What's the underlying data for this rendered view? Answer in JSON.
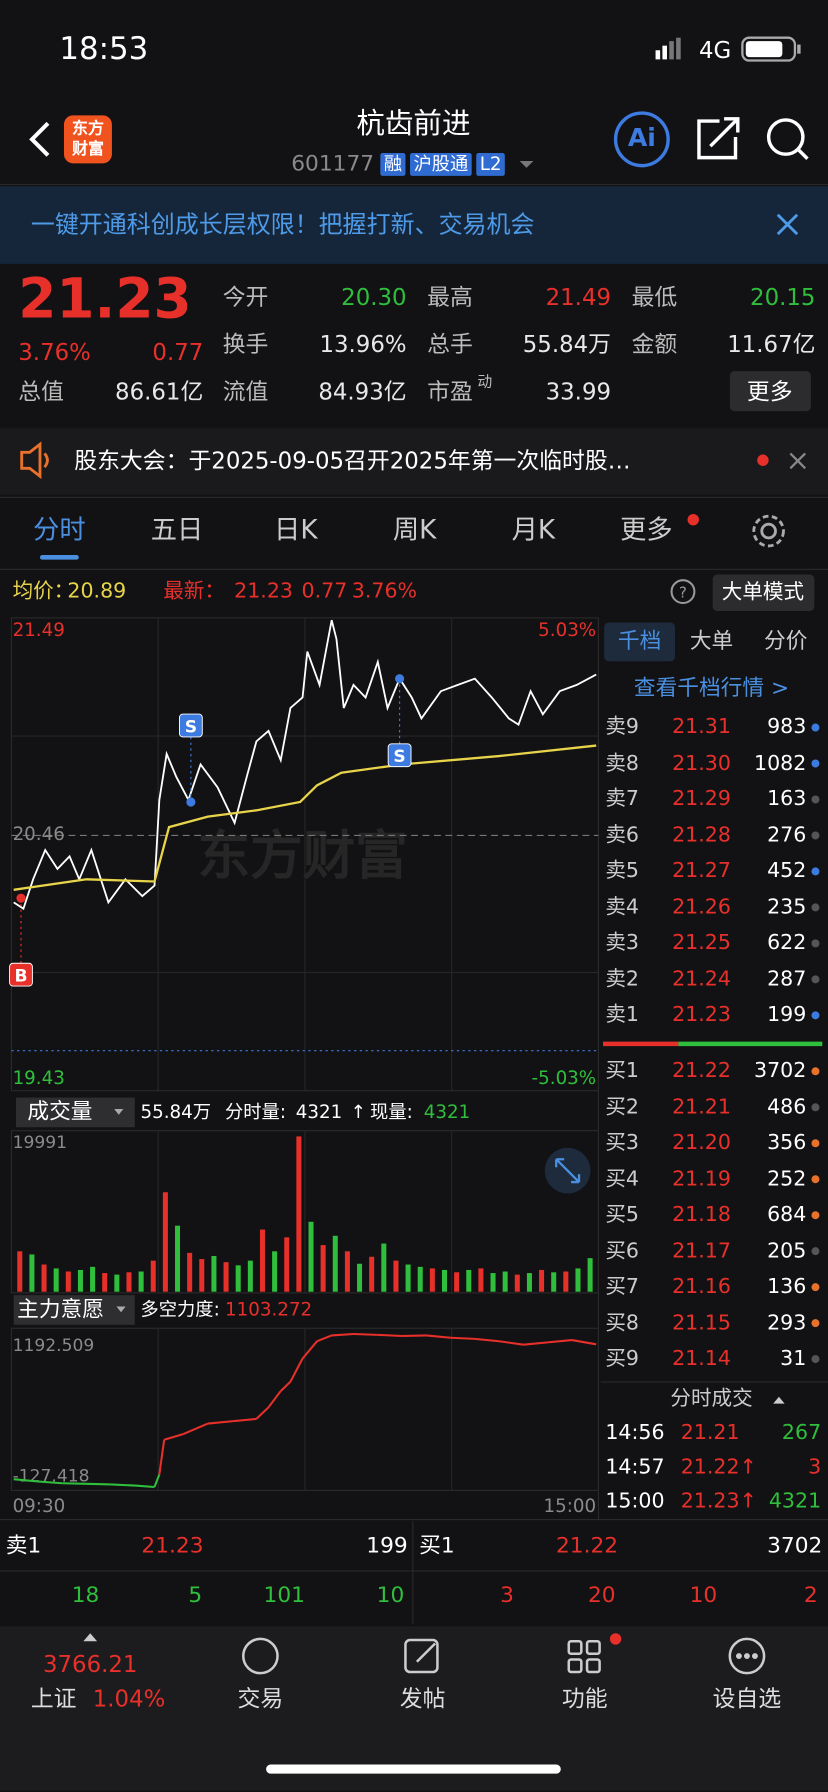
{
  "status_bar": {
    "time": "18:53",
    "network": "4G"
  },
  "header": {
    "logo": [
      "东方",
      "财富"
    ],
    "title": "杭齿前进",
    "code": "601177",
    "badges": [
      "融",
      "沪股通",
      "L2"
    ],
    "ai": "Ai"
  },
  "banner": {
    "text": "一键开通科创成长层权限！把握打新、交易机会"
  },
  "quote": {
    "price": "21.23",
    "change_pct": "3.76%",
    "change": "0.77",
    "fields": [
      {
        "label": "今开",
        "value": "20.30",
        "color": "#2fbf3c"
      },
      {
        "label": "最高",
        "value": "21.49",
        "color": "#e8302b"
      },
      {
        "label": "最低",
        "value": "20.15",
        "color": "#2fbf3c"
      },
      {
        "label": "换手",
        "value": "13.96%"
      },
      {
        "label": "总手",
        "value": "55.84万"
      },
      {
        "label": "金额",
        "value": "11.67亿"
      },
      {
        "label": "总值",
        "value": "86.61亿"
      },
      {
        "label": "流值",
        "value": "84.93亿"
      },
      {
        "label": "市盈",
        "sup": "动",
        "value": "33.99"
      }
    ],
    "more": "更多"
  },
  "notice": {
    "text": "股东大会：于2025-09-05召开2025年第一次临时股…"
  },
  "tabs": [
    "分时",
    "五日",
    "日K",
    "周K",
    "月K",
    "更多"
  ],
  "info_bar": {
    "avg_label": "均价：",
    "avg": "20.89",
    "latest_label": "最新：",
    "latest": "21.23",
    "change": "0.77",
    "change_pct": "3.76%",
    "mode": "大单模式"
  },
  "chart_data": [
    {
      "type": "line",
      "watermark": "东方财富",
      "xlim": [
        0,
        240
      ],
      "ylim": [
        19.43,
        21.49
      ],
      "yticks": [
        19.43,
        20.46,
        21.49
      ],
      "y2lim": [
        -5.03,
        5.03
      ],
      "y2ticks": [
        {
          "value": -5.03,
          "label": "-5.03%"
        },
        {
          "value": 5.03,
          "label": "5.03%"
        }
      ],
      "series": [
        {
          "color": "#ffffff",
          "x": [
            0,
            4,
            8,
            13,
            18,
            23,
            27,
            32,
            39,
            46,
            53,
            58,
            60,
            63,
            67,
            72,
            77,
            84,
            91,
            96,
            100,
            105,
            110,
            114,
            119,
            121,
            126,
            131,
            133,
            136,
            140,
            145,
            150,
            154,
            159,
            164,
            168,
            176,
            183,
            190,
            197,
            204,
            208,
            213,
            218,
            225,
            232,
            240
          ],
          "values": [
            20.14,
            20.11,
            20.25,
            20.39,
            20.3,
            20.36,
            20.25,
            20.39,
            20.14,
            20.25,
            20.17,
            20.22,
            20.63,
            20.85,
            20.74,
            20.63,
            20.8,
            20.69,
            20.52,
            20.74,
            20.91,
            20.96,
            20.82,
            21.07,
            21.12,
            21.34,
            21.18,
            21.49,
            21.4,
            21.07,
            21.18,
            21.12,
            21.29,
            21.07,
            21.21,
            21.12,
            21.02,
            21.15,
            21.18,
            21.21,
            21.12,
            21.02,
            20.99,
            21.15,
            21.04,
            21.15,
            21.18,
            21.23
          ]
        },
        {
          "color": "#e8d44a",
          "x": [
            0,
            30,
            58,
            64,
            80,
            100,
            118,
            125,
            135,
            160,
            200,
            240
          ],
          "values": [
            20.2,
            20.25,
            20.24,
            20.5,
            20.55,
            20.58,
            20.62,
            20.7,
            20.76,
            20.8,
            20.84,
            20.89
          ]
        }
      ],
      "markers": [
        {
          "label": "B",
          "x": 3,
          "y": 20.16,
          "color": "#e8302b",
          "placement": "below"
        },
        {
          "label": "S",
          "x": 73,
          "y": 20.62,
          "color": "#3d7be0",
          "placement": "above"
        },
        {
          "label": "S",
          "x": 159,
          "y": 21.21,
          "color": "#3d7be0",
          "placement": "below"
        }
      ]
    },
    {
      "type": "bar",
      "title": "成交量",
      "total": "55.84万",
      "minute_label": "分时量:",
      "minute_volume": 4321,
      "arrow": "↑",
      "current_label": "现量:",
      "current_volume": 4321,
      "ylim": [
        0,
        19991
      ],
      "yticks": [
        19991
      ],
      "up_color": "#e8302b",
      "down_color": "#2fbf3c",
      "values": [
        5200,
        4800,
        3500,
        3000,
        2600,
        2800,
        3200,
        2400,
        2200,
        2500,
        2600,
        4000,
        12800,
        8500,
        5000,
        4200,
        4600,
        3800,
        3400,
        4000,
        8000,
        5200,
        7000,
        19991,
        9000,
        6000,
        7200,
        5200,
        3600,
        4500,
        6200,
        4000,
        3500,
        3200,
        3000,
        2800,
        2500,
        2800,
        3000,
        2400,
        2600,
        2200,
        2400,
        2800,
        2500,
        2600,
        3000,
        4321
      ],
      "up": [
        true,
        false,
        true,
        false,
        true,
        false,
        false,
        true,
        false,
        true,
        false,
        true,
        true,
        false,
        true,
        true,
        false,
        true,
        false,
        false,
        true,
        false,
        true,
        true,
        false,
        true,
        false,
        true,
        false,
        true,
        false,
        true,
        false,
        false,
        true,
        false,
        true,
        false,
        true,
        false,
        false,
        true,
        false,
        true,
        false,
        true,
        false,
        false
      ]
    },
    {
      "type": "line",
      "title": "主力意愿",
      "stat_label": "多空力度:",
      "stat_value": "1103.272",
      "xlim": [
        0,
        240
      ],
      "xticks": [
        {
          "value": 0,
          "label": "09:30"
        },
        {
          "value": 240,
          "label": "15:00"
        }
      ],
      "ylim": [
        -127.418,
        1192.509
      ],
      "yticks": [
        -127.418,
        1192.509
      ],
      "up_color": "#e8302b",
      "down_color": "#2fbf3c",
      "x": [
        0,
        10,
        20,
        30,
        40,
        50,
        58,
        60,
        62,
        70,
        80,
        90,
        100,
        105,
        110,
        114,
        119,
        125,
        131,
        140,
        150,
        160,
        170,
        180,
        190,
        200,
        210,
        220,
        230,
        240
      ],
      "series": [
        {
          "values": [
            -60,
            -80,
            -95,
            -100,
            -105,
            -115,
            -127.418,
            -20,
            280,
            330,
            420,
            440,
            460,
            560,
            700,
            780,
            980,
            1130,
            1180,
            1192.509,
            1185,
            1175,
            1180,
            1160,
            1150,
            1130,
            1100,
            1120,
            1140,
            1103.272
          ]
        }
      ]
    }
  ],
  "order_book": {
    "tabs": [
      "千档",
      "大单",
      "分价"
    ],
    "link": "查看千档行情 >",
    "asks": [
      {
        "label": "卖9",
        "price": "21.31",
        "volume": "983",
        "dot": "#3d7be0"
      },
      {
        "label": "卖8",
        "price": "21.30",
        "volume": "1082",
        "dot": "#3d7be0"
      },
      {
        "label": "卖7",
        "price": "21.29",
        "volume": "163",
        "dot": "#555555"
      },
      {
        "label": "卖6",
        "price": "21.28",
        "volume": "276",
        "dot": "#555555"
      },
      {
        "label": "卖5",
        "price": "21.27",
        "volume": "452",
        "dot": "#3d7be0"
      },
      {
        "label": "卖4",
        "price": "21.26",
        "volume": "235",
        "dot": "#555555"
      },
      {
        "label": "卖3",
        "price": "21.25",
        "volume": "622",
        "dot": "#555555"
      },
      {
        "label": "卖2",
        "price": "21.24",
        "volume": "287",
        "dot": "#555555"
      },
      {
        "label": "卖1",
        "price": "21.23",
        "volume": "199",
        "dot": "#3d7be0"
      }
    ],
    "bids": [
      {
        "label": "买1",
        "price": "21.22",
        "volume": "3702",
        "dot": "#e8712b"
      },
      {
        "label": "买2",
        "price": "21.21",
        "volume": "486",
        "dot": "#555555"
      },
      {
        "label": "买3",
        "price": "21.20",
        "volume": "356",
        "dot": "#e8712b"
      },
      {
        "label": "买4",
        "price": "21.19",
        "volume": "252",
        "dot": "#e8712b"
      },
      {
        "label": "买5",
        "price": "21.18",
        "volume": "684",
        "dot": "#e8712b"
      },
      {
        "label": "买6",
        "price": "21.17",
        "volume": "205",
        "dot": "#555555"
      },
      {
        "label": "买7",
        "price": "21.16",
        "volume": "136",
        "dot": "#e8712b"
      },
      {
        "label": "买8",
        "price": "21.15",
        "volume": "293",
        "dot": "#e8712b"
      },
      {
        "label": "买9",
        "price": "21.14",
        "volume": "31",
        "dot": "#555555"
      }
    ]
  },
  "trades": {
    "title": "分时成交",
    "rows": [
      {
        "time": "14:56",
        "price": "21.21",
        "volume": "267",
        "color": "#2fbf3c"
      },
      {
        "time": "14:57",
        "price": "21.22↑",
        "volume": "3",
        "color": "#e8302b"
      },
      {
        "time": "15:00",
        "price": "21.23↑",
        "volume": "4321",
        "color": "#2fbf3c"
      }
    ]
  },
  "bottom_quote": {
    "sell": {
      "label": "卖1",
      "price": "21.23",
      "volume": "199",
      "counts": [
        "18",
        "5",
        "101",
        "10"
      ]
    },
    "buy": {
      "label": "买1",
      "price": "21.22",
      "volume": "3702",
      "counts": [
        "3",
        "20",
        "10",
        "2"
      ]
    }
  },
  "nav": {
    "index": {
      "value": "3766.21",
      "name": "上证",
      "change": "1.04%"
    },
    "items": [
      "交易",
      "发帖",
      "功能",
      "设自选"
    ]
  }
}
